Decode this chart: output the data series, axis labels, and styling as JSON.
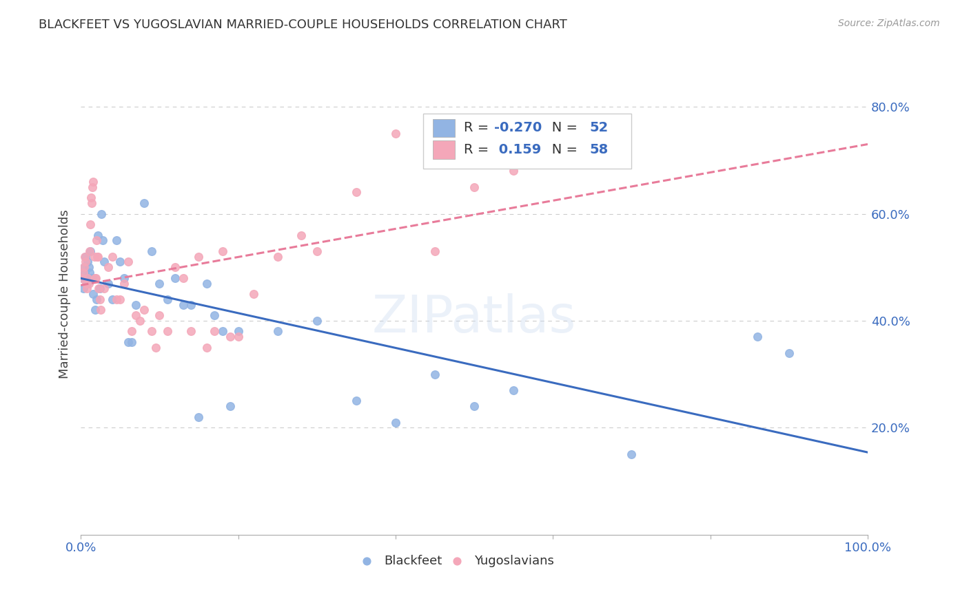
{
  "title": "BLACKFEET VS YUGOSLAVIAN MARRIED-COUPLE HOUSEHOLDS CORRELATION CHART",
  "source": "Source: ZipAtlas.com",
  "ylabel": "Married-couple Households",
  "watermark": "ZIPatlas",
  "legend": {
    "blackfeet_R": "-0.270",
    "blackfeet_N": "52",
    "yugoslavian_R": "0.159",
    "yugoslavian_N": "58"
  },
  "blackfeet_color": "#92b4e3",
  "yugoslavian_color": "#f4a7b9",
  "blackfeet_line_color": "#3a6bbf",
  "yugoslavian_line_color": "#e87b9a",
  "blackfeet_points": [
    [
      0.002,
      0.48
    ],
    [
      0.003,
      0.46
    ],
    [
      0.004,
      0.5
    ],
    [
      0.005,
      0.49
    ],
    [
      0.006,
      0.52
    ],
    [
      0.007,
      0.48
    ],
    [
      0.008,
      0.47
    ],
    [
      0.009,
      0.51
    ],
    [
      0.01,
      0.5
    ],
    [
      0.011,
      0.49
    ],
    [
      0.012,
      0.53
    ],
    [
      0.013,
      0.48
    ],
    [
      0.015,
      0.48
    ],
    [
      0.016,
      0.45
    ],
    [
      0.018,
      0.42
    ],
    [
      0.02,
      0.44
    ],
    [
      0.022,
      0.56
    ],
    [
      0.024,
      0.46
    ],
    [
      0.026,
      0.6
    ],
    [
      0.028,
      0.55
    ],
    [
      0.03,
      0.51
    ],
    [
      0.035,
      0.47
    ],
    [
      0.04,
      0.44
    ],
    [
      0.045,
      0.55
    ],
    [
      0.05,
      0.51
    ],
    [
      0.055,
      0.48
    ],
    [
      0.06,
      0.36
    ],
    [
      0.065,
      0.36
    ],
    [
      0.07,
      0.43
    ],
    [
      0.08,
      0.62
    ],
    [
      0.09,
      0.53
    ],
    [
      0.1,
      0.47
    ],
    [
      0.11,
      0.44
    ],
    [
      0.12,
      0.48
    ],
    [
      0.13,
      0.43
    ],
    [
      0.14,
      0.43
    ],
    [
      0.15,
      0.22
    ],
    [
      0.16,
      0.47
    ],
    [
      0.17,
      0.41
    ],
    [
      0.18,
      0.38
    ],
    [
      0.19,
      0.24
    ],
    [
      0.2,
      0.38
    ],
    [
      0.25,
      0.38
    ],
    [
      0.3,
      0.4
    ],
    [
      0.35,
      0.25
    ],
    [
      0.4,
      0.21
    ],
    [
      0.45,
      0.3
    ],
    [
      0.5,
      0.24
    ],
    [
      0.55,
      0.27
    ],
    [
      0.7,
      0.15
    ],
    [
      0.86,
      0.37
    ],
    [
      0.9,
      0.34
    ]
  ],
  "yugoslavian_points": [
    [
      0.002,
      0.48
    ],
    [
      0.003,
      0.49
    ],
    [
      0.004,
      0.5
    ],
    [
      0.005,
      0.52
    ],
    [
      0.006,
      0.51
    ],
    [
      0.007,
      0.47
    ],
    [
      0.008,
      0.46
    ],
    [
      0.009,
      0.48
    ],
    [
      0.01,
      0.47
    ],
    [
      0.011,
      0.53
    ],
    [
      0.012,
      0.58
    ],
    [
      0.013,
      0.63
    ],
    [
      0.014,
      0.62
    ],
    [
      0.015,
      0.65
    ],
    [
      0.016,
      0.66
    ],
    [
      0.017,
      0.52
    ],
    [
      0.018,
      0.48
    ],
    [
      0.019,
      0.48
    ],
    [
      0.02,
      0.55
    ],
    [
      0.021,
      0.52
    ],
    [
      0.022,
      0.52
    ],
    [
      0.023,
      0.46
    ],
    [
      0.024,
      0.44
    ],
    [
      0.025,
      0.42
    ],
    [
      0.03,
      0.46
    ],
    [
      0.035,
      0.5
    ],
    [
      0.04,
      0.52
    ],
    [
      0.045,
      0.44
    ],
    [
      0.05,
      0.44
    ],
    [
      0.055,
      0.47
    ],
    [
      0.06,
      0.51
    ],
    [
      0.065,
      0.38
    ],
    [
      0.07,
      0.41
    ],
    [
      0.075,
      0.4
    ],
    [
      0.08,
      0.42
    ],
    [
      0.09,
      0.38
    ],
    [
      0.095,
      0.35
    ],
    [
      0.1,
      0.41
    ],
    [
      0.11,
      0.38
    ],
    [
      0.12,
      0.5
    ],
    [
      0.13,
      0.48
    ],
    [
      0.14,
      0.38
    ],
    [
      0.15,
      0.52
    ],
    [
      0.16,
      0.35
    ],
    [
      0.17,
      0.38
    ],
    [
      0.18,
      0.53
    ],
    [
      0.19,
      0.37
    ],
    [
      0.2,
      0.37
    ],
    [
      0.22,
      0.45
    ],
    [
      0.25,
      0.52
    ],
    [
      0.28,
      0.56
    ],
    [
      0.3,
      0.53
    ],
    [
      0.35,
      0.64
    ],
    [
      0.4,
      0.75
    ],
    [
      0.45,
      0.53
    ],
    [
      0.5,
      0.65
    ],
    [
      0.55,
      0.68
    ],
    [
      0.65,
      0.72
    ]
  ],
  "xlim": [
    0.0,
    1.0
  ],
  "ylim": [
    0.0,
    0.9
  ],
  "yticks": [
    0.2,
    0.4,
    0.6,
    0.8
  ],
  "ytick_labels": [
    "20.0%",
    "40.0%",
    "60.0%",
    "80.0%"
  ],
  "background_color": "#ffffff",
  "grid_color": "#cccccc",
  "label_color": "#3a6bbf"
}
